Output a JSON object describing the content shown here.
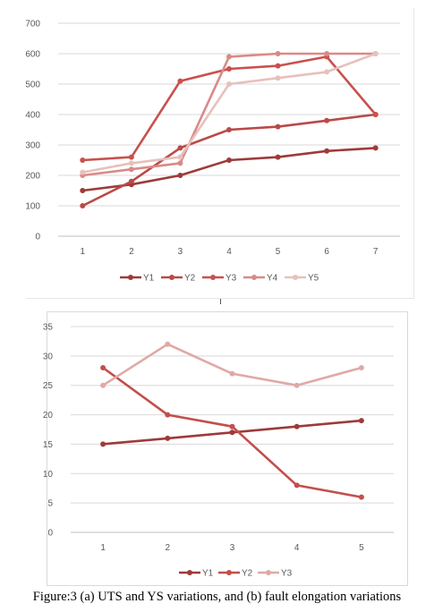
{
  "chart_data": [
    {
      "type": "line",
      "categories": [
        "1",
        "2",
        "3",
        "4",
        "5",
        "6",
        "7"
      ],
      "ylim": [
        0,
        700
      ],
      "yticks": [
        "0",
        "100",
        "200",
        "300",
        "400",
        "500",
        "600",
        "700"
      ],
      "grid": true,
      "legend": "bottom",
      "series": [
        {
          "name": "Y1",
          "color": "#9e3a3a",
          "values": [
            150,
            170,
            200,
            250,
            260,
            280,
            290
          ]
        },
        {
          "name": "Y2",
          "color": "#b94a48",
          "values": [
            100,
            180,
            290,
            350,
            360,
            380,
            400
          ]
        },
        {
          "name": "Y3",
          "color": "#c9504e",
          "values": [
            250,
            260,
            510,
            550,
            560,
            590,
            400
          ]
        },
        {
          "name": "Y4",
          "color": "#d98a87",
          "values": [
            200,
            220,
            240,
            590,
            600,
            600,
            600
          ]
        },
        {
          "name": "Y5",
          "color": "#e7c0bd",
          "values": [
            210,
            240,
            260,
            500,
            520,
            540,
            600
          ]
        }
      ]
    },
    {
      "type": "line",
      "categories": [
        "1",
        "2",
        "3",
        "4",
        "5"
      ],
      "ylim": [
        0,
        35
      ],
      "yticks": [
        "0",
        "5",
        "10",
        "15",
        "20",
        "25",
        "30",
        "35"
      ],
      "grid": true,
      "legend": "bottom",
      "series": [
        {
          "name": "Y1",
          "color": "#9e3a3a",
          "values": [
            15,
            16,
            17,
            18,
            19
          ]
        },
        {
          "name": "Y2",
          "color": "#c24f4c",
          "values": [
            28,
            20,
            18,
            8,
            6
          ]
        },
        {
          "name": "Y3",
          "color": "#dfa9a6",
          "values": [
            25,
            32,
            27,
            25,
            28
          ]
        }
      ]
    }
  ],
  "caption": "Figure:3 (a) UTS and YS variations, and (b) fault elongation variations"
}
